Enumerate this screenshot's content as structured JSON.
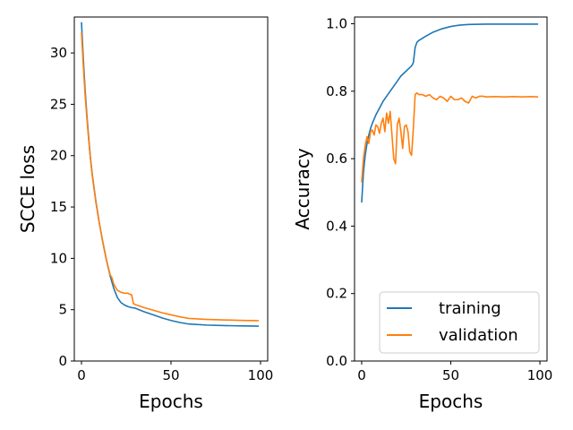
{
  "chart_data": [
    {
      "type": "line",
      "xlabel": "Epochs",
      "ylabel": "SCCE loss",
      "xlim": [
        -4,
        104
      ],
      "ylim": [
        0,
        33.5
      ],
      "xticks": [
        0,
        50,
        100
      ],
      "yticks": [
        0,
        5,
        10,
        15,
        20,
        25,
        30
      ],
      "colors": [
        "#1f77b4",
        "#ff7f0e"
      ],
      "series": [
        {
          "name": "training",
          "x": [
            0,
            1,
            2,
            3,
            4,
            5,
            6,
            8,
            10,
            12,
            14,
            16,
            18,
            20,
            22,
            24,
            26,
            28,
            30,
            35,
            40,
            45,
            50,
            55,
            60,
            70,
            80,
            90,
            99
          ],
          "y": [
            33,
            29.5,
            26.5,
            24,
            21.8,
            19.8,
            18.2,
            15.6,
            13.4,
            11.5,
            9.8,
            8.3,
            7.1,
            6.2,
            5.7,
            5.45,
            5.3,
            5.2,
            5.15,
            4.8,
            4.5,
            4.2,
            3.95,
            3.75,
            3.6,
            3.5,
            3.45,
            3.42,
            3.4
          ]
        },
        {
          "name": "validation",
          "x": [
            0,
            1,
            2,
            3,
            4,
            5,
            6,
            8,
            10,
            12,
            14,
            16,
            17,
            18,
            19,
            20,
            22,
            24,
            26,
            27,
            28,
            29,
            30,
            35,
            40,
            45,
            50,
            55,
            60,
            70,
            80,
            90,
            99
          ],
          "y": [
            32,
            28.8,
            26,
            23.7,
            21.6,
            19.7,
            18.1,
            15.5,
            13.4,
            11.5,
            9.8,
            8.4,
            8.1,
            7.5,
            7.2,
            6.9,
            6.7,
            6.6,
            6.6,
            6.5,
            6.45,
            5.6,
            5.5,
            5.2,
            4.95,
            4.7,
            4.5,
            4.3,
            4.15,
            4.05,
            4.0,
            3.95,
            3.93
          ]
        }
      ],
      "grid": false
    },
    {
      "type": "line",
      "xlabel": "Epochs",
      "ylabel": "Accuracy",
      "xlim": [
        -4,
        104
      ],
      "ylim": [
        0,
        1.02
      ],
      "xticks": [
        0,
        50,
        100
      ],
      "yticks": [
        0.0,
        0.2,
        0.4,
        0.6,
        0.8,
        1.0
      ],
      "colors": [
        "#1f77b4",
        "#ff7f0e"
      ],
      "legend": {
        "position": "lower-right",
        "entries": [
          "training",
          "validation"
        ]
      },
      "series": [
        {
          "name": "training",
          "x": [
            0,
            1,
            2,
            3,
            4,
            5,
            6,
            8,
            10,
            12,
            14,
            16,
            18,
            20,
            22,
            24,
            26,
            28,
            29,
            30,
            31,
            32,
            35,
            40,
            45,
            50,
            55,
            60,
            70,
            80,
            90,
            99
          ],
          "y": [
            0.47,
            0.56,
            0.61,
            0.645,
            0.67,
            0.69,
            0.705,
            0.73,
            0.75,
            0.77,
            0.785,
            0.8,
            0.815,
            0.83,
            0.845,
            0.855,
            0.865,
            0.875,
            0.885,
            0.93,
            0.945,
            0.95,
            0.96,
            0.975,
            0.985,
            0.992,
            0.996,
            0.998,
            0.999,
            0.999,
            0.999,
            0.999
          ]
        },
        {
          "name": "validation",
          "x": [
            0,
            1,
            2,
            3,
            4,
            5,
            6,
            7,
            8,
            9,
            10,
            11,
            12,
            13,
            14,
            15,
            16,
            17,
            18,
            19,
            20,
            21,
            22,
            23,
            24,
            25,
            26,
            27,
            28,
            29,
            30,
            31,
            32,
            34,
            36,
            38,
            40,
            42,
            44,
            46,
            48,
            50,
            52,
            54,
            56,
            58,
            60,
            62,
            64,
            66,
            68,
            70,
            75,
            80,
            85,
            90,
            95,
            99
          ],
          "y": [
            0.53,
            0.6,
            0.64,
            0.665,
            0.645,
            0.68,
            0.685,
            0.67,
            0.7,
            0.695,
            0.675,
            0.705,
            0.72,
            0.68,
            0.735,
            0.705,
            0.74,
            0.67,
            0.6,
            0.585,
            0.7,
            0.72,
            0.68,
            0.63,
            0.695,
            0.7,
            0.68,
            0.62,
            0.61,
            0.69,
            0.79,
            0.795,
            0.79,
            0.79,
            0.785,
            0.79,
            0.78,
            0.775,
            0.785,
            0.78,
            0.77,
            0.785,
            0.775,
            0.775,
            0.78,
            0.77,
            0.765,
            0.785,
            0.78,
            0.785,
            0.785,
            0.783,
            0.784,
            0.783,
            0.784,
            0.783,
            0.784,
            0.783
          ]
        }
      ],
      "grid": false
    }
  ]
}
